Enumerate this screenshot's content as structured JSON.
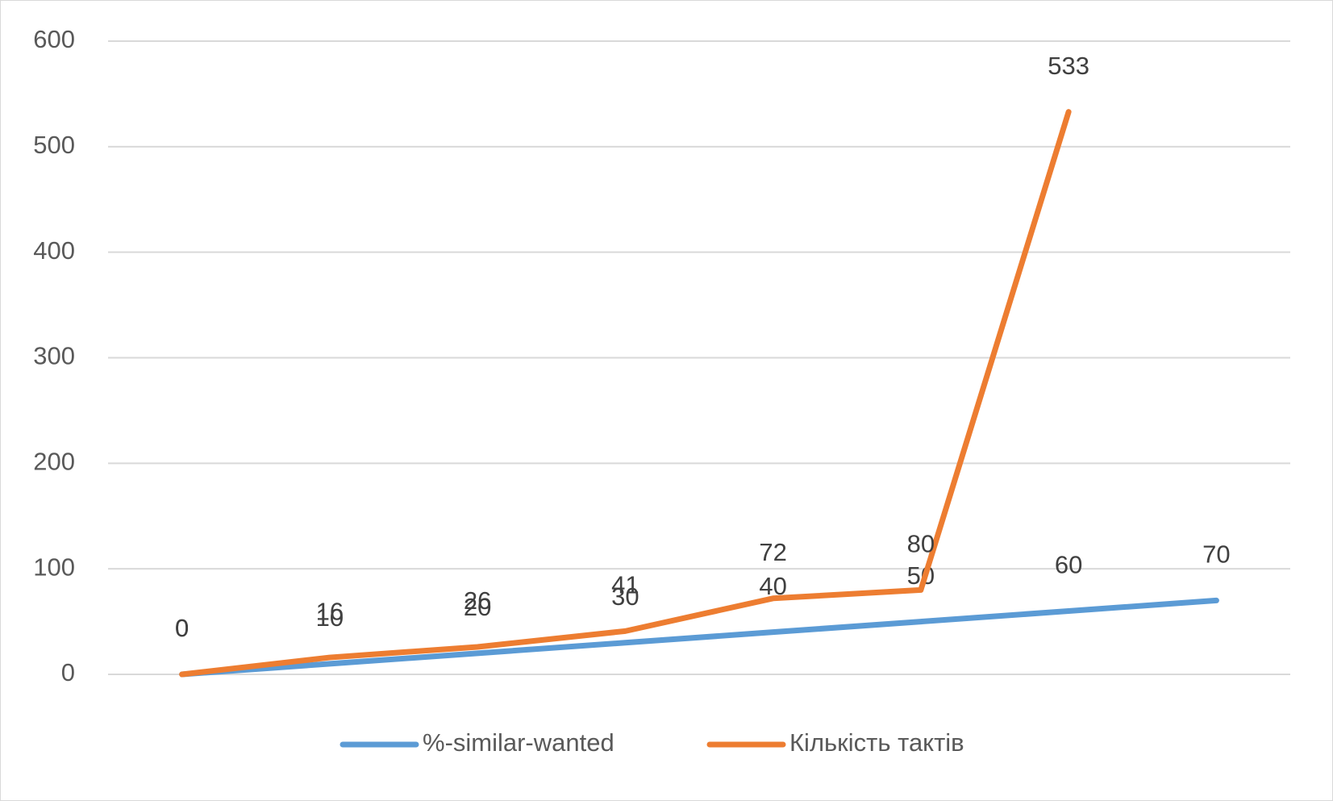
{
  "chart_data": {
    "type": "line",
    "categories": [
      null,
      null,
      null,
      null,
      null,
      null,
      null,
      null
    ],
    "series": [
      {
        "name": "%-similar-wanted",
        "color": "#5b9bd5",
        "values": [
          0,
          10,
          20,
          30,
          40,
          50,
          60,
          70
        ]
      },
      {
        "name": "Кількість тактів",
        "color": "#ed7d31",
        "values": [
          0,
          16,
          26,
          41,
          72,
          80,
          533,
          null
        ]
      }
    ],
    "ylim": [
      0,
      600
    ],
    "yticks": [
      0,
      100,
      200,
      300,
      400,
      500,
      600
    ],
    "grid": true,
    "legend": "bottom",
    "data_labels": true
  }
}
